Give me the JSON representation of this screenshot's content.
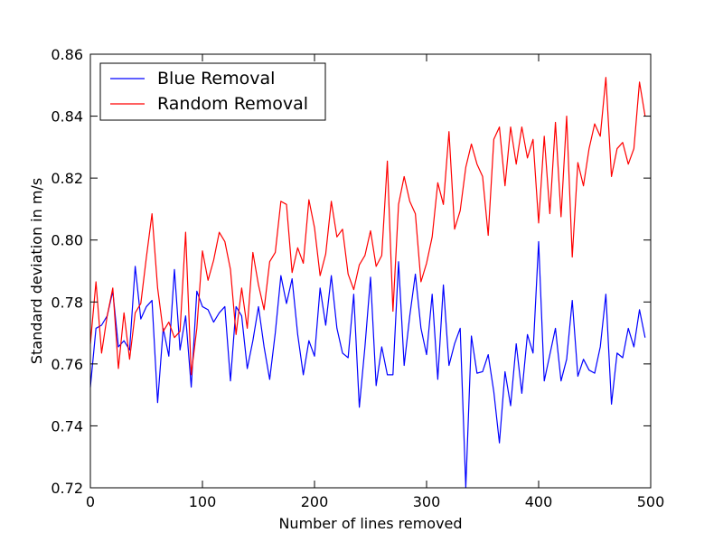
{
  "chart_data": {
    "type": "line",
    "title": "",
    "xlabel": "Number of lines removed",
    "ylabel": "Standard deviation in m/s",
    "xlim": [
      0,
      500
    ],
    "ylim": [
      0.72,
      0.86
    ],
    "x_ticks": [
      0,
      100,
      200,
      300,
      400,
      500
    ],
    "y_ticks": [
      0.72,
      0.74,
      0.76,
      0.78,
      0.8,
      0.82,
      0.84,
      0.86
    ],
    "x_tick_labels": [
      "0",
      "100",
      "200",
      "300",
      "400",
      "500"
    ],
    "y_tick_labels": [
      "0.72",
      "0.74",
      "0.76",
      "0.78",
      "0.80",
      "0.82",
      "0.84",
      "0.86"
    ],
    "grid": false,
    "legend_position": "upper-left",
    "x": [
      0,
      5,
      10,
      15,
      20,
      25,
      30,
      35,
      40,
      45,
      50,
      55,
      60,
      65,
      70,
      75,
      80,
      85,
      90,
      95,
      100,
      105,
      110,
      115,
      120,
      125,
      130,
      135,
      140,
      145,
      150,
      155,
      160,
      165,
      170,
      175,
      180,
      185,
      190,
      195,
      200,
      205,
      210,
      215,
      220,
      225,
      230,
      235,
      240,
      245,
      250,
      255,
      260,
      265,
      270,
      275,
      280,
      285,
      290,
      295,
      300,
      305,
      310,
      315,
      320,
      325,
      330,
      335,
      340,
      345,
      350,
      355,
      360,
      365,
      370,
      375,
      380,
      385,
      390,
      395,
      400,
      405,
      410,
      415,
      420,
      425,
      430,
      435,
      440,
      445,
      450,
      455,
      460,
      465,
      470,
      475,
      480,
      485,
      490,
      495
    ],
    "series": [
      {
        "name": "Blue Removal",
        "color": "#0000ff",
        "values": [
          0.7525,
          0.7715,
          0.7725,
          0.7755,
          0.7835,
          0.7655,
          0.7675,
          0.7645,
          0.7915,
          0.7745,
          0.7785,
          0.7805,
          0.7475,
          0.7715,
          0.7625,
          0.7905,
          0.7645,
          0.7755,
          0.7525,
          0.7835,
          0.7785,
          0.7775,
          0.7735,
          0.7765,
          0.7785,
          0.7545,
          0.7785,
          0.7755,
          0.7585,
          0.7675,
          0.7785,
          0.7655,
          0.755,
          0.77,
          0.7885,
          0.7795,
          0.7875,
          0.7695,
          0.7565,
          0.7675,
          0.7625,
          0.7845,
          0.7725,
          0.7885,
          0.7715,
          0.7635,
          0.762,
          0.7825,
          0.746,
          0.7655,
          0.788,
          0.753,
          0.7655,
          0.7565,
          0.7565,
          0.793,
          0.7595,
          0.7755,
          0.789,
          0.7715,
          0.763,
          0.7825,
          0.755,
          0.7855,
          0.7595,
          0.7665,
          0.7715,
          0.72,
          0.769,
          0.757,
          0.7575,
          0.763,
          0.751,
          0.7345,
          0.7575,
          0.7465,
          0.7665,
          0.7505,
          0.7695,
          0.7635,
          0.7995,
          0.7545,
          0.763,
          0.7715,
          0.7545,
          0.7615,
          0.7805,
          0.756,
          0.7615,
          0.758,
          0.757,
          0.7655,
          0.7825,
          0.747,
          0.7635,
          0.762,
          0.7715,
          0.7655,
          0.7775,
          0.7685
        ]
      },
      {
        "name": "Random Removal",
        "color": "#ff0000",
        "values": [
          0.7665,
          0.7865,
          0.7635,
          0.7755,
          0.7845,
          0.7585,
          0.7765,
          0.7615,
          0.7765,
          0.7795,
          0.7945,
          0.8085,
          0.7845,
          0.7705,
          0.7735,
          0.7685,
          0.7705,
          0.8025,
          0.7565,
          0.7715,
          0.7965,
          0.787,
          0.7935,
          0.8025,
          0.7995,
          0.7905,
          0.7695,
          0.7845,
          0.7715,
          0.796,
          0.7855,
          0.7775,
          0.793,
          0.796,
          0.8125,
          0.8115,
          0.7895,
          0.7975,
          0.7925,
          0.813,
          0.804,
          0.7885,
          0.7955,
          0.8125,
          0.801,
          0.8035,
          0.789,
          0.784,
          0.792,
          0.795,
          0.803,
          0.7915,
          0.795,
          0.8255,
          0.777,
          0.8115,
          0.8205,
          0.8125,
          0.8085,
          0.7865,
          0.7925,
          0.801,
          0.8185,
          0.8115,
          0.835,
          0.8035,
          0.8095,
          0.8235,
          0.831,
          0.8245,
          0.8205,
          0.8015,
          0.8325,
          0.8365,
          0.8175,
          0.8365,
          0.8245,
          0.8365,
          0.8265,
          0.8325,
          0.8055,
          0.8335,
          0.8085,
          0.838,
          0.8075,
          0.84,
          0.7945,
          0.825,
          0.8175,
          0.8295,
          0.8375,
          0.8335,
          0.8525,
          0.8205,
          0.8295,
          0.8315,
          0.8245,
          0.8295,
          0.851,
          0.84
        ]
      }
    ]
  }
}
